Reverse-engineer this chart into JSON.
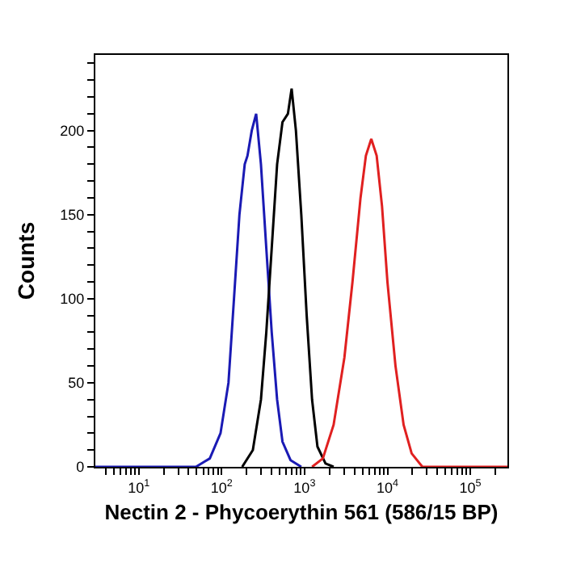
{
  "chart_data": {
    "type": "line",
    "xlabel": "Nectin 2 - Phycoerythin 561 (586/15 BP)",
    "ylabel": "Counts",
    "log": "x",
    "grid": false,
    "marker": "none",
    "line_style": "solid",
    "xlim": [
      3,
      280000
    ],
    "ylim": [
      0,
      245
    ],
    "xticks": [
      {
        "value": 4,
        "label": null
      },
      {
        "value": 5,
        "label": null
      },
      {
        "value": 6,
        "label": null
      },
      {
        "value": 7,
        "label": null
      },
      {
        "value": 8,
        "label": null
      },
      {
        "value": 9,
        "label": null
      },
      {
        "value": 10,
        "label": "10$^{1}$"
      },
      {
        "value": 20,
        "label": null
      },
      {
        "value": 30,
        "label": null
      },
      {
        "value": 40,
        "label": null
      },
      {
        "value": 50,
        "label": null
      },
      {
        "value": 60,
        "label": null
      },
      {
        "value": 70,
        "label": null
      },
      {
        "value": 80,
        "label": null
      },
      {
        "value": 90,
        "label": null
      },
      {
        "value": 100,
        "label": "10$^{2}$"
      },
      {
        "value": 200,
        "label": null
      },
      {
        "value": 300,
        "label": null
      },
      {
        "value": 400,
        "label": null
      },
      {
        "value": 500,
        "label": null
      },
      {
        "value": 600,
        "label": null
      },
      {
        "value": 700,
        "label": null
      },
      {
        "value": 800,
        "label": null
      },
      {
        "value": 900,
        "label": null
      },
      {
        "value": 1000,
        "label": "10$^{3}$"
      },
      {
        "value": 2000,
        "label": null
      },
      {
        "value": 3000,
        "label": null
      },
      {
        "value": 4000,
        "label": null
      },
      {
        "value": 5000,
        "label": null
      },
      {
        "value": 6000,
        "label": null
      },
      {
        "value": 7000,
        "label": null
      },
      {
        "value": 8000,
        "label": null
      },
      {
        "value": 9000,
        "label": null
      },
      {
        "value": 10000,
        "label": "10$^{4}$"
      },
      {
        "value": 20000,
        "label": null
      },
      {
        "value": 30000,
        "label": null
      },
      {
        "value": 40000,
        "label": null
      },
      {
        "value": 50000,
        "label": null
      },
      {
        "value": 60000,
        "label": null
      },
      {
        "value": 70000,
        "label": null
      },
      {
        "value": 80000,
        "label": null
      },
      {
        "value": 90000,
        "label": null
      },
      {
        "value": 100000,
        "label": "10$^{5}$"
      },
      {
        "value": 200000,
        "label": null
      }
    ],
    "yticks": [
      0,
      {
        "value": 10,
        "label": null
      },
      {
        "value": 20,
        "label": null
      },
      {
        "value": 30,
        "label": null
      },
      {
        "value": 40,
        "label": null
      },
      50,
      {
        "value": 60,
        "label": null
      },
      {
        "value": 70,
        "label": null
      },
      {
        "value": 80,
        "label": null
      },
      {
        "value": 90,
        "label": null
      },
      100,
      {
        "value": 110,
        "label": null
      },
      {
        "value": 120,
        "label": null
      },
      {
        "value": 130,
        "label": null
      },
      {
        "value": 140,
        "label": null
      },
      150,
      {
        "value": 160,
        "label": null
      },
      {
        "value": 170,
        "label": null
      },
      {
        "value": 180,
        "label": null
      },
      {
        "value": 190,
        "label": null
      },
      200,
      {
        "value": 210,
        "label": null
      },
      {
        "value": 220,
        "label": null
      },
      {
        "value": 230,
        "label": null
      },
      {
        "value": 240,
        "label": null
      }
    ],
    "series": [
      {
        "color": "#1a1ab4",
        "x": [
          3,
          49,
          72,
          97,
          121,
          141,
          164,
          190,
          205,
          231,
          261,
          298,
          346,
          402,
          467,
          542,
          678,
          914
        ],
        "values": [
          0,
          0,
          5,
          20,
          50,
          100,
          150,
          180,
          185,
          200,
          210,
          180,
          130,
          80,
          40,
          15,
          4,
          0
        ]
      },
      {
        "color": "#000000",
        "x": [
          177,
          238,
          298,
          346,
          402,
          467,
          542,
          630,
          699,
          787,
          914,
          1062,
          1233,
          1432,
          1792,
          2243
        ],
        "values": [
          0,
          10,
          40,
          80,
          130,
          180,
          205,
          210,
          225,
          200,
          150,
          90,
          40,
          12,
          2,
          0
        ]
      },
      {
        "color": "#e02020",
        "x": [
          1233,
          1663,
          2243,
          3026,
          3788,
          4735,
          5495,
          6383,
          7413,
          8606,
          10000,
          12503,
          15663,
          19583,
          26400,
          280000
        ],
        "values": [
          0,
          5,
          25,
          65,
          110,
          160,
          185,
          195,
          185,
          155,
          110,
          60,
          25,
          8,
          0,
          0
        ]
      }
    ]
  }
}
